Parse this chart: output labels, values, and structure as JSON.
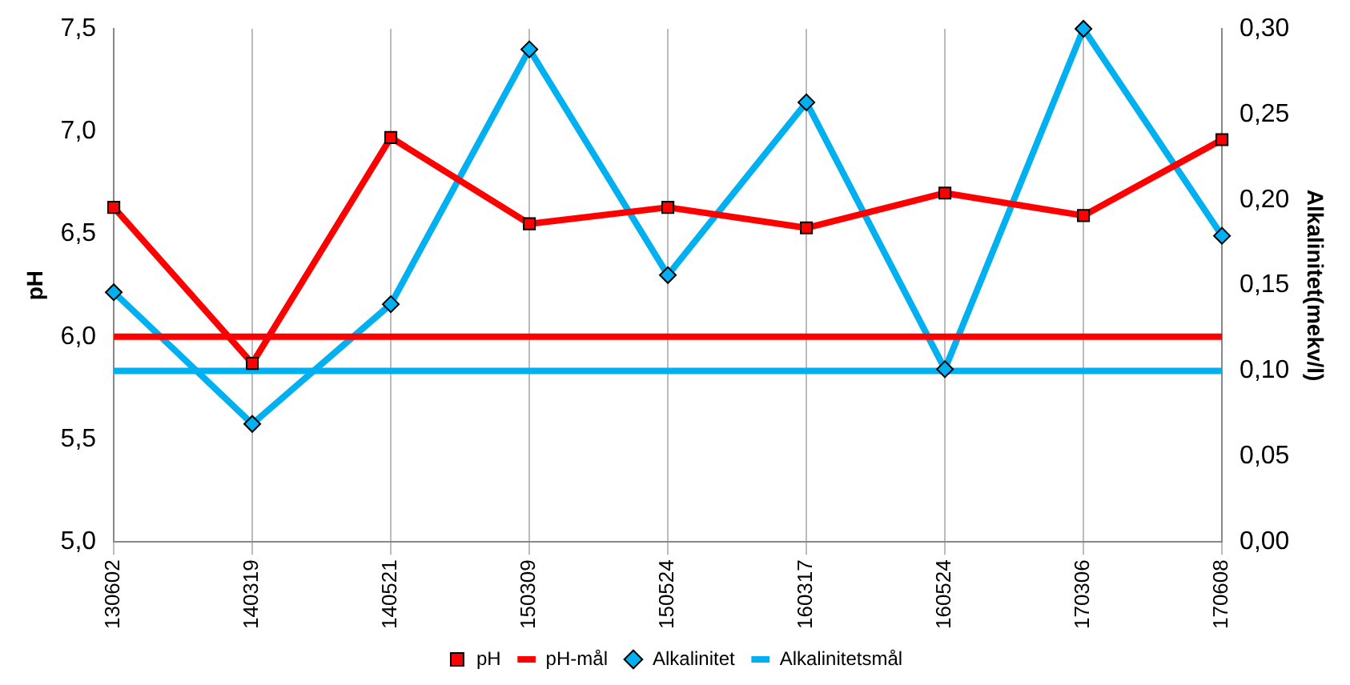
{
  "chart_data": {
    "type": "line",
    "ylabel": "pH",
    "y2label": "Alkalinitet(mekv/l)",
    "categories": [
      "130602",
      "140319",
      "140521",
      "150309",
      "150524",
      "160317",
      "160524",
      "170306",
      "170608"
    ],
    "series": [
      {
        "name": "pH",
        "color": "#ff0000",
        "marker": "square",
        "values": [
          6.63,
          5.87,
          6.97,
          6.55,
          6.63,
          6.53,
          6.7,
          6.59,
          6.96
        ]
      },
      {
        "name": "pH-mål",
        "color": "#ff0000",
        "marker": "none",
        "values": [
          6.0,
          6.0,
          6.0,
          6.0,
          6.0,
          6.0,
          6.0,
          6.0,
          6.0
        ]
      },
      {
        "name": "Alkalinitet",
        "color": "#00b0f0",
        "marker": "diamond",
        "axis": "y2",
        "values": [
          0.146,
          0.069,
          0.139,
          0.288,
          0.156,
          0.257,
          0.101,
          0.3,
          0.179
        ]
      },
      {
        "name": "Alkalinitetsmål",
        "color": "#00b0f0",
        "marker": "none",
        "axis": "y2",
        "values": [
          0.1,
          0.1,
          0.1,
          0.1,
          0.1,
          0.1,
          0.1,
          0.1,
          0.1
        ]
      }
    ],
    "ylim": [
      5.0,
      7.5
    ],
    "yticks": [
      {
        "value": 5.0,
        "label": "5,0"
      },
      {
        "value": 5.5,
        "label": "5,5"
      },
      {
        "value": 6.0,
        "label": "6,0"
      },
      {
        "value": 6.5,
        "label": "6,5"
      },
      {
        "value": 7.0,
        "label": "7,0"
      },
      {
        "value": 7.5,
        "label": "7,5"
      }
    ],
    "y2lim": [
      0,
      0.3
    ],
    "y2ticks": [
      {
        "value": 0,
        "label": "0,00"
      },
      {
        "value": 0.05,
        "label": "0,05"
      },
      {
        "value": 0.1,
        "label": "0,10"
      },
      {
        "value": 0.15,
        "label": "0,15"
      },
      {
        "value": 0.2,
        "label": "0,20"
      },
      {
        "value": 0.25,
        "label": "0,25"
      },
      {
        "value": 0.3,
        "label": "0,30"
      }
    ],
    "grid": "x",
    "legend": "bottom",
    "line_style": "solid"
  }
}
